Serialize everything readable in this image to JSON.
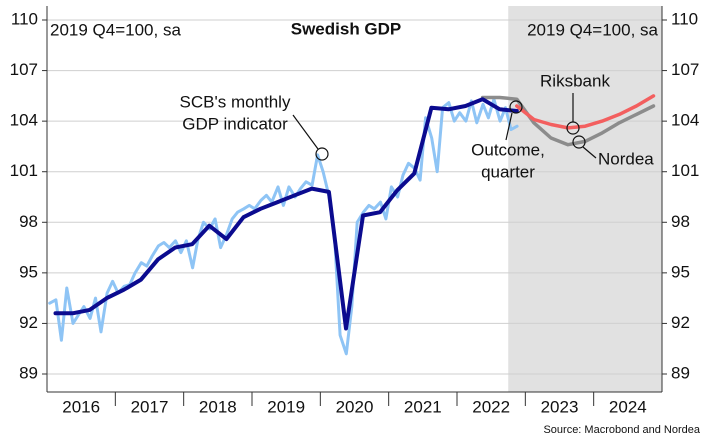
{
  "chart_data": {
    "type": "line",
    "title": "Swedish GDP",
    "y_label": "2019 Q4=100, sa",
    "y2_label": "2019 Q4=100, sa",
    "source": "Source: Macrobond and Nordea",
    "xlim": [
      2016,
      2025
    ],
    "xticks": [
      {
        "value": 2016.5,
        "label": "2016"
      },
      {
        "value": 2017.5,
        "label": "2017"
      },
      {
        "value": 2018.5,
        "label": "2018"
      },
      {
        "value": 2019.5,
        "label": "2019"
      },
      {
        "value": 2020.5,
        "label": "2020"
      },
      {
        "value": 2021.5,
        "label": "2021"
      },
      {
        "value": 2022.5,
        "label": "2022"
      },
      {
        "value": 2023.5,
        "label": "2023"
      },
      {
        "value": 2024.5,
        "label": "2024"
      }
    ],
    "ylim": [
      89,
      110
    ],
    "yticks": [
      89,
      92,
      95,
      98,
      101,
      104,
      107,
      110
    ],
    "y2lim": [
      89,
      110
    ],
    "y2ticks": [
      89,
      92,
      95,
      98,
      101,
      104,
      107,
      110
    ],
    "grid": true,
    "forecast_span": [
      2022.75,
      2025
    ],
    "series": [
      {
        "name": "SCB's monthly GDP indicator",
        "color": "#8ec4f5",
        "x": [
          2016.04,
          2016.13,
          2016.21,
          2016.29,
          2016.38,
          2016.46,
          2016.54,
          2016.63,
          2016.71,
          2016.79,
          2016.88,
          2016.96,
          2017.04,
          2017.13,
          2017.21,
          2017.29,
          2017.38,
          2017.46,
          2017.54,
          2017.63,
          2017.71,
          2017.79,
          2017.88,
          2017.96,
          2018.04,
          2018.13,
          2018.21,
          2018.29,
          2018.38,
          2018.46,
          2018.54,
          2018.63,
          2018.71,
          2018.79,
          2018.88,
          2018.96,
          2019.04,
          2019.13,
          2019.21,
          2019.29,
          2019.38,
          2019.46,
          2019.54,
          2019.63,
          2019.71,
          2019.79,
          2019.88,
          2019.96,
          2020.04,
          2020.13,
          2020.21,
          2020.29,
          2020.38,
          2020.46,
          2020.54,
          2020.63,
          2020.71,
          2020.79,
          2020.88,
          2020.96,
          2021.04,
          2021.13,
          2021.21,
          2021.29,
          2021.38,
          2021.46,
          2021.54,
          2021.63,
          2021.71,
          2021.79,
          2021.88,
          2021.96,
          2022.04,
          2022.13,
          2022.21,
          2022.29,
          2022.38,
          2022.46,
          2022.54,
          2022.63,
          2022.71,
          2022.79,
          2022.88
        ],
        "values": [
          93.2,
          93.4,
          91.0,
          94.1,
          92.0,
          92.5,
          93.0,
          92.3,
          93.5,
          91.5,
          93.8,
          94.5,
          93.8,
          94.2,
          94.3,
          95.0,
          95.6,
          95.4,
          96.0,
          96.6,
          96.8,
          96.5,
          96.9,
          96.2,
          96.9,
          95.3,
          97.0,
          98.0,
          97.6,
          98.2,
          96.5,
          97.3,
          98.2,
          98.6,
          98.8,
          99.0,
          98.8,
          99.3,
          99.6,
          99.2,
          100.1,
          99.0,
          100.1,
          99.5,
          100.0,
          100.4,
          100.2,
          102.0,
          101.0,
          99.5,
          97.0,
          91.3,
          90.2,
          93.0,
          98.0,
          98.6,
          99.0,
          98.8,
          99.2,
          98.2,
          100.1,
          99.5,
          100.8,
          101.5,
          101.2,
          100.5,
          104.2,
          103.0,
          101.0,
          104.8,
          105.1,
          104.0,
          104.5,
          104.0,
          105.2,
          103.9,
          105.0,
          104.2,
          105.3,
          104.0,
          104.8,
          103.5,
          103.7
        ]
      },
      {
        "name": "Nordea",
        "color": "#8c8c8c",
        "x": [
          2022.375,
          2022.625,
          2022.875,
          2023.125,
          2023.375,
          2023.625,
          2023.875,
          2024.125,
          2024.375,
          2024.625,
          2024.875
        ],
        "values": [
          105.4,
          105.4,
          105.3,
          103.9,
          103.0,
          102.6,
          102.8,
          103.3,
          103.9,
          104.4,
          104.9
        ]
      },
      {
        "name": "Riksbank",
        "color": "#f35f5f",
        "x": [
          2022.875,
          2023.125,
          2023.375,
          2023.625,
          2023.875,
          2024.125,
          2024.375,
          2024.625,
          2024.875
        ],
        "values": [
          104.9,
          104.1,
          103.8,
          103.6,
          103.7,
          104.0,
          104.4,
          104.9,
          105.5
        ]
      },
      {
        "name": "Outcome, quarter",
        "color": "#0b0b8f",
        "x": [
          2016.125,
          2016.375,
          2016.625,
          2016.875,
          2017.125,
          2017.375,
          2017.625,
          2017.875,
          2018.125,
          2018.375,
          2018.625,
          2018.875,
          2019.125,
          2019.375,
          2019.625,
          2019.875,
          2020.125,
          2020.375,
          2020.625,
          2020.875,
          2021.125,
          2021.375,
          2021.625,
          2021.875,
          2022.125,
          2022.375,
          2022.625,
          2022.875
        ],
        "values": [
          92.6,
          92.6,
          92.8,
          93.5,
          94.0,
          94.6,
          95.8,
          96.5,
          96.7,
          97.8,
          97.0,
          98.3,
          98.8,
          99.2,
          99.6,
          100.0,
          99.8,
          91.7,
          98.4,
          98.6,
          99.9,
          100.9,
          104.8,
          104.7,
          104.9,
          105.3,
          104.7,
          104.6
        ]
      }
    ],
    "annotations": [
      {
        "lines": [
          "SCB's monthly",
          "GDP indicator"
        ]
      },
      {
        "lines": [
          "Riksbank"
        ]
      },
      {
        "lines": [
          "Nordea"
        ]
      },
      {
        "lines": [
          "Outcome,",
          "quarter"
        ]
      }
    ]
  }
}
